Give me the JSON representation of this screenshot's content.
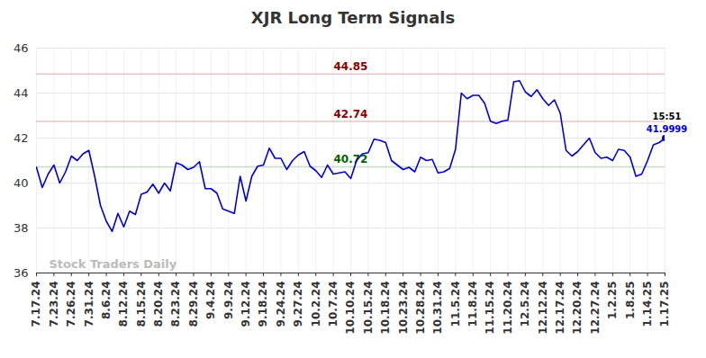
{
  "chart_data": {
    "type": "line",
    "title": "XJR Long Term Signals",
    "categories": [
      "7.17.24",
      null,
      null,
      "7.23.24",
      null,
      null,
      "7.26.24",
      null,
      null,
      "7.31.24",
      null,
      null,
      "8.6.24",
      null,
      null,
      "8.12.24",
      null,
      null,
      "8.15.24",
      null,
      null,
      "8.20.24",
      null,
      null,
      "8.23.24",
      null,
      null,
      "8.29.24",
      null,
      null,
      "9.4.24",
      null,
      null,
      "9.9.24",
      null,
      null,
      "9.12.24",
      null,
      null,
      "9.18.24",
      null,
      null,
      "9.24.24",
      null,
      null,
      "9.27.24",
      null,
      null,
      "10.2.24",
      null,
      null,
      "10.7.24",
      null,
      null,
      "10.10.24",
      null,
      null,
      "10.15.24",
      null,
      null,
      "10.18.24",
      null,
      null,
      "10.23.24",
      null,
      null,
      "10.28.24",
      null,
      null,
      "10.31.24",
      null,
      null,
      "11.5.24",
      null,
      null,
      "11.8.24",
      null,
      null,
      "11.15.24",
      null,
      null,
      "11.20.24",
      null,
      null,
      "12.5.24",
      null,
      null,
      "12.12.24",
      null,
      null,
      "12.17.24",
      null,
      null,
      "12.20.24",
      null,
      null,
      "12.27.24",
      null,
      null,
      "1.2.25",
      null,
      null,
      "1.8.25",
      null,
      null,
      "1.14.25",
      null,
      null,
      "1.17.25"
    ],
    "series": [
      {
        "name": "XJR",
        "color": "#0000cc",
        "values": [
          40.7,
          39.8,
          40.4,
          40.8,
          40.0,
          40.5,
          41.2,
          41.0,
          41.3,
          41.45,
          40.3,
          39.0,
          38.3,
          37.85,
          38.65,
          38.05,
          38.75,
          38.6,
          39.5,
          39.6,
          39.95,
          39.55,
          40.0,
          39.65,
          40.9,
          40.8,
          40.6,
          40.7,
          40.95,
          39.75,
          39.75,
          39.55,
          38.85,
          38.75,
          38.65,
          40.3,
          39.2,
          40.3,
          40.75,
          40.8,
          41.55,
          41.1,
          41.1,
          40.6,
          41.0,
          41.25,
          41.4,
          40.75,
          40.55,
          40.25,
          40.8,
          40.4,
          40.45,
          40.5,
          40.2,
          41.0,
          41.3,
          41.35,
          41.95,
          41.9,
          41.8,
          41.0,
          40.8,
          40.6,
          40.7,
          40.5,
          41.15,
          41.0,
          41.05,
          40.45,
          40.5,
          40.65,
          41.5,
          44.0,
          43.75,
          43.9,
          43.9,
          43.55,
          42.75,
          42.65,
          42.75,
          42.8,
          44.5,
          44.55,
          44.05,
          43.85,
          44.15,
          43.75,
          43.45,
          43.7,
          43.1,
          41.45,
          41.2,
          41.4,
          41.7,
          42.0,
          41.35,
          41.1,
          41.15,
          41.0,
          41.5,
          41.45,
          41.15,
          40.3,
          40.4,
          41.0,
          41.7,
          41.8,
          41.9999
        ]
      }
    ],
    "ylim": [
      36,
      46
    ],
    "yticks": [
      36,
      38,
      40,
      42,
      44,
      46
    ],
    "grid": true,
    "signals": [
      {
        "value": 44.85,
        "color": "#8b0000"
      },
      {
        "value": 42.74,
        "color": "#8b0000"
      },
      {
        "value": 40.72,
        "color": "#006400"
      }
    ],
    "last_point_time": "15:51",
    "watermark": "Stock Traders Daily"
  }
}
